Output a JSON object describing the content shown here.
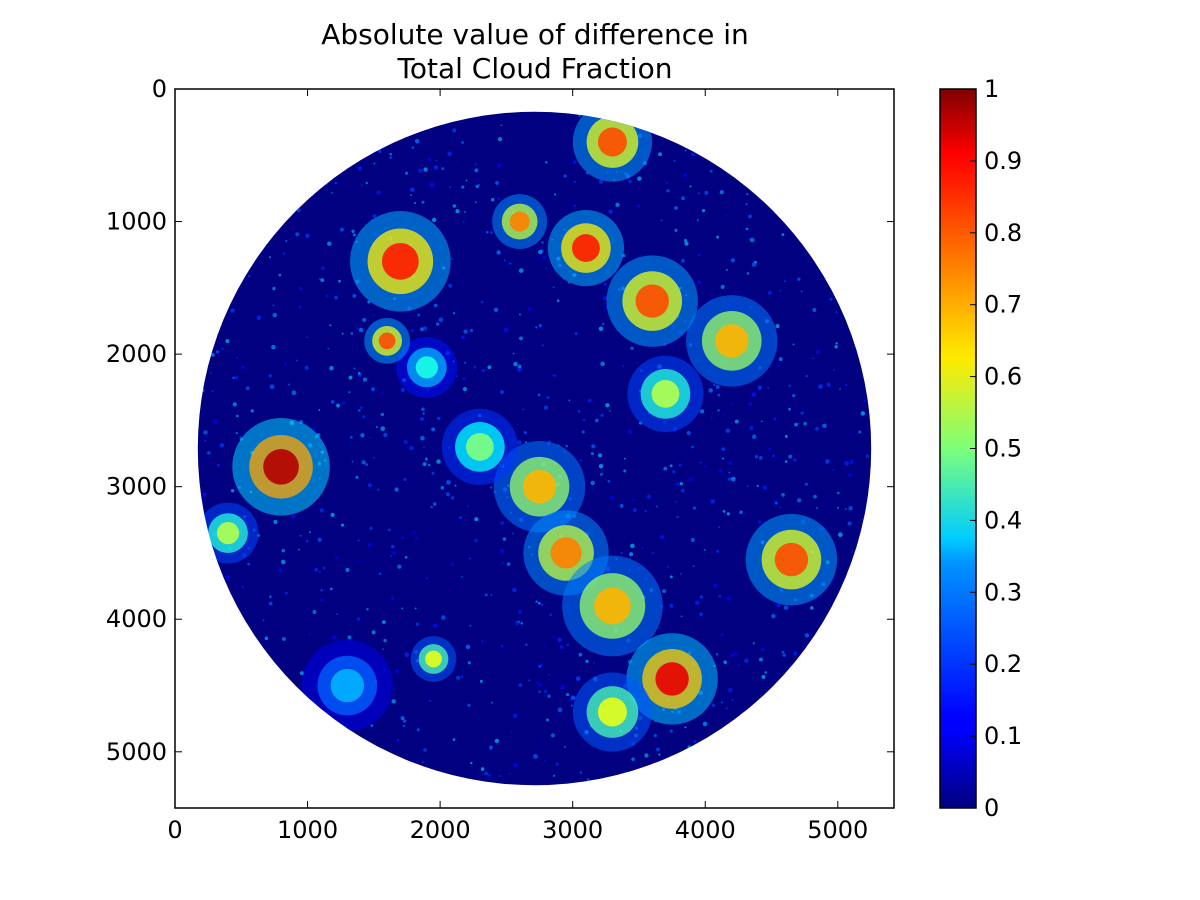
{
  "chart_data": {
    "type": "heatmap",
    "title": "Absolute value of difference in",
    "subtitle": "Total Cloud Fraction",
    "xlabel": "",
    "ylabel": "",
    "xlim": [
      0,
      5424
    ],
    "ylim": [
      5424,
      0
    ],
    "x_ticks": [
      0,
      1000,
      2000,
      3000,
      4000,
      5000
    ],
    "y_ticks": [
      0,
      1000,
      2000,
      3000,
      4000,
      5000
    ],
    "x_tick_labels": [
      "0",
      "1000",
      "2000",
      "3000",
      "4000",
      "5000"
    ],
    "y_tick_labels": [
      "0",
      "1000",
      "2000",
      "3000",
      "4000",
      "5000"
    ],
    "grid": false,
    "colormap": "jet",
    "colorbar": {
      "range": [
        0,
        1
      ],
      "ticks": [
        0,
        0.1,
        0.2,
        0.3,
        0.4,
        0.5,
        0.6,
        0.7,
        0.8,
        0.9,
        1
      ],
      "tick_labels": [
        "0",
        "0.1",
        "0.2",
        "0.3",
        "0.4",
        "0.5",
        "0.6",
        "0.7",
        "0.8",
        "0.9",
        "1"
      ],
      "placement": "right"
    },
    "disk": {
      "center_x": 2712,
      "center_y": 2712,
      "radius": 2540,
      "background_value": 0.0
    },
    "features": [
      {
        "x": 1700,
        "y": 1300,
        "r": 330,
        "value": 0.85
      },
      {
        "x": 2600,
        "y": 1000,
        "r": 180,
        "value": 0.75
      },
      {
        "x": 3100,
        "y": 1200,
        "r": 250,
        "value": 0.85
      },
      {
        "x": 3600,
        "y": 1600,
        "r": 300,
        "value": 0.8
      },
      {
        "x": 4200,
        "y": 1900,
        "r": 300,
        "value": 0.7
      },
      {
        "x": 3300,
        "y": 400,
        "r": 260,
        "value": 0.8
      },
      {
        "x": 800,
        "y": 2850,
        "r": 320,
        "value": 0.95
      },
      {
        "x": 400,
        "y": 3350,
        "r": 200,
        "value": 0.55
      },
      {
        "x": 2750,
        "y": 3000,
        "r": 300,
        "value": 0.7
      },
      {
        "x": 2950,
        "y": 3500,
        "r": 280,
        "value": 0.75
      },
      {
        "x": 3300,
        "y": 3900,
        "r": 330,
        "value": 0.7
      },
      {
        "x": 3750,
        "y": 4450,
        "r": 300,
        "value": 0.9
      },
      {
        "x": 3300,
        "y": 4700,
        "r": 260,
        "value": 0.6
      },
      {
        "x": 4650,
        "y": 3550,
        "r": 300,
        "value": 0.8
      },
      {
        "x": 1300,
        "y": 4500,
        "r": 300,
        "value": 0.3
      },
      {
        "x": 1950,
        "y": 4300,
        "r": 150,
        "value": 0.6
      },
      {
        "x": 2300,
        "y": 2700,
        "r": 250,
        "value": 0.5
      },
      {
        "x": 3700,
        "y": 2300,
        "r": 250,
        "value": 0.55
      },
      {
        "x": 1900,
        "y": 2100,
        "r": 200,
        "value": 0.4
      },
      {
        "x": 1600,
        "y": 1900,
        "r": 150,
        "value": 0.8
      }
    ]
  }
}
